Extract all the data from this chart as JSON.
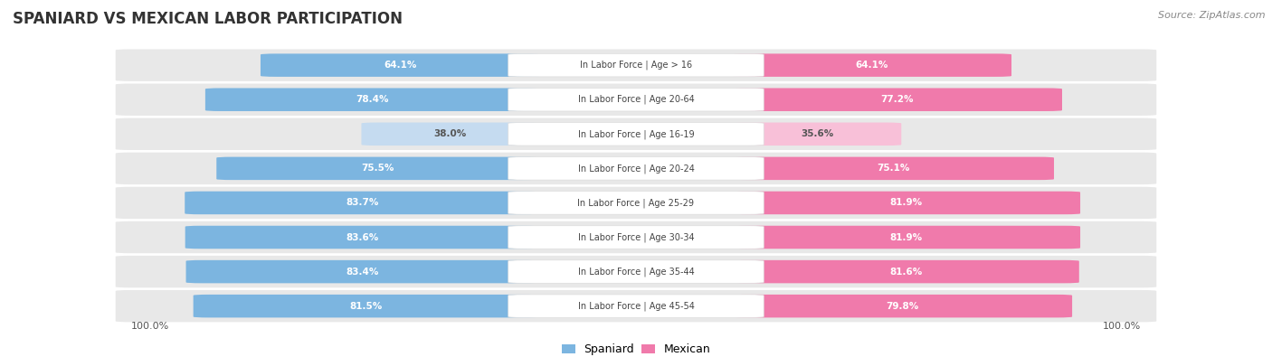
{
  "title": "SPANIARD VS MEXICAN LABOR PARTICIPATION",
  "source": "Source: ZipAtlas.com",
  "categories": [
    "In Labor Force | Age > 16",
    "In Labor Force | Age 20-64",
    "In Labor Force | Age 16-19",
    "In Labor Force | Age 20-24",
    "In Labor Force | Age 25-29",
    "In Labor Force | Age 30-34",
    "In Labor Force | Age 35-44",
    "In Labor Force | Age 45-54"
  ],
  "spaniard_values": [
    64.1,
    78.4,
    38.0,
    75.5,
    83.7,
    83.6,
    83.4,
    81.5
  ],
  "mexican_values": [
    64.1,
    77.2,
    35.6,
    75.1,
    81.9,
    81.9,
    81.6,
    79.8
  ],
  "spaniard_color": "#7cb5e0",
  "mexican_color": "#f07aab",
  "spaniard_color_light": "#c5dbf0",
  "mexican_color_light": "#f8c0d8",
  "row_bg_color": "#e8e8e8",
  "max_value": 100.0,
  "title_fontsize": 12,
  "source_fontsize": 8,
  "bar_label_fontsize": 7.5,
  "cat_label_fontsize": 7.0,
  "legend_fontsize": 9,
  "axis_label_fontsize": 8
}
